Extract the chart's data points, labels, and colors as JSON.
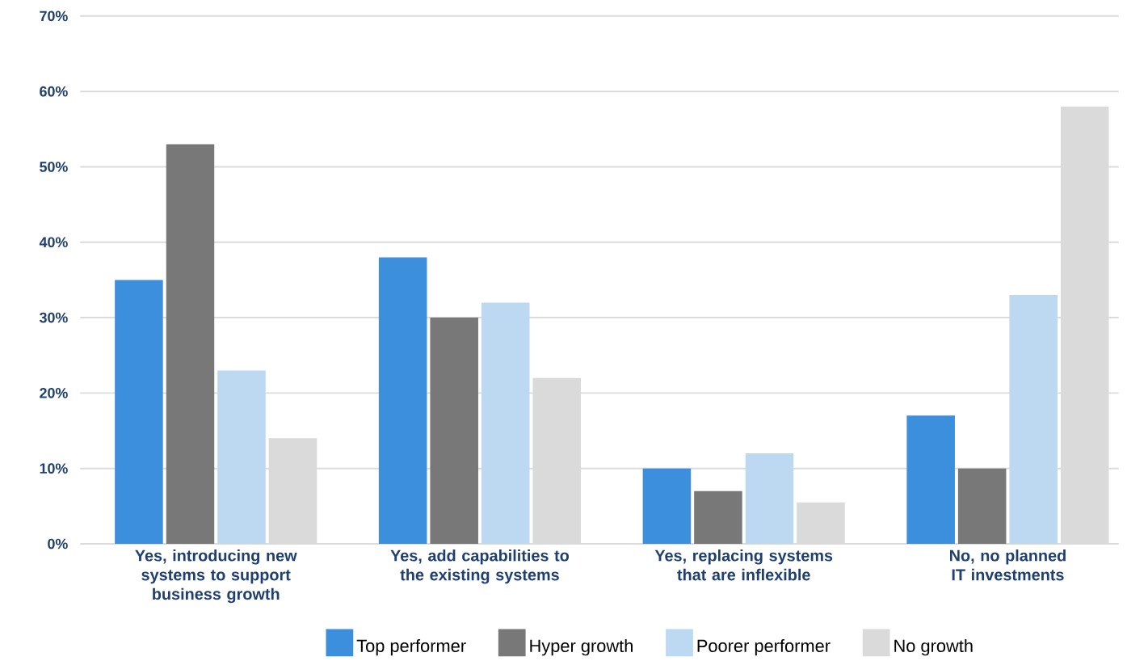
{
  "chart_data": {
    "type": "bar",
    "categories": [
      "Yes, introducing new systems to support business growth",
      "Yes, add capabilities to the existing systems",
      "Yes, replacing systems that are inflexible",
      "No, no planned IT investments"
    ],
    "series": [
      {
        "name": "Top performer",
        "color": "#3b8fdd",
        "values": [
          35,
          38,
          10,
          17
        ]
      },
      {
        "name": "Hyper growth",
        "color": "#787878",
        "values": [
          53,
          30,
          7,
          10
        ]
      },
      {
        "name": "Poorer performer",
        "color": "#bdd9f2",
        "values": [
          23,
          32,
          12,
          33
        ]
      },
      {
        "name": "No growth",
        "color": "#dadada",
        "values": [
          14,
          22,
          5.5,
          58
        ]
      }
    ],
    "ylim": [
      0,
      70
    ],
    "yticks": [
      {
        "value": 0,
        "label": "0%"
      },
      {
        "value": 10,
        "label": "10%"
      },
      {
        "value": 20,
        "label": "20%"
      },
      {
        "value": 30,
        "label": "30%"
      },
      {
        "value": 40,
        "label": "40%"
      },
      {
        "value": 50,
        "label": "50%"
      },
      {
        "value": 60,
        "label": "60%"
      },
      {
        "value": 70,
        "label": "70%"
      }
    ],
    "grid": "y",
    "legend": "bottom"
  }
}
